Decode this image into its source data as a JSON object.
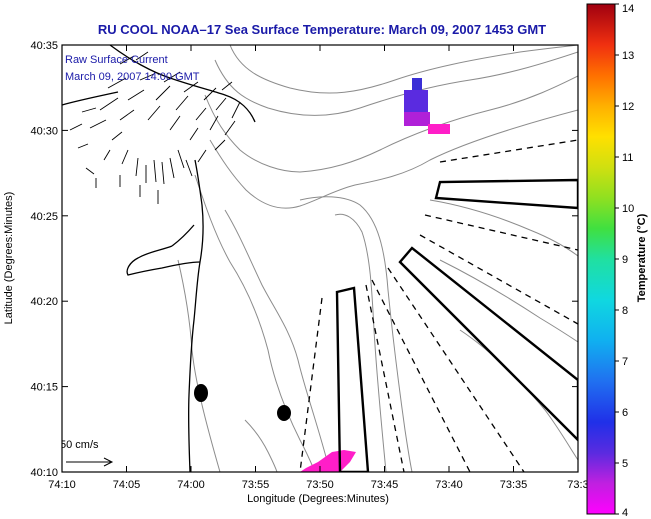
{
  "title": "RU COOL  NOAA–17  Sea Surface Temperature:  March 09, 2007 1453 GMT",
  "overlay": {
    "line1": "Raw Surface Current",
    "line2": "March 09, 2007 14:00 GMT"
  },
  "scale_label": "50 cm/s",
  "axes": {
    "xlabel": "Longitude (Degrees:Minutes)",
    "ylabel": "Latitude (Degrees:Minutes)",
    "xticks": [
      "74:10",
      "74:05",
      "74:00",
      "73:55",
      "73:50",
      "73:45",
      "73:40",
      "73:35",
      "73:3"
    ],
    "yticks": [
      "40:35",
      "40:30",
      "40:25",
      "40:20",
      "40:15",
      "40:10"
    ]
  },
  "colorbar": {
    "label": "Temperature (°C)",
    "ticks": [
      "14",
      "13",
      "12",
      "11",
      "10",
      "9",
      "8",
      "7",
      "6",
      "5",
      "4"
    ],
    "min": 4,
    "max": 14
  },
  "colors": {
    "title": "#1a1aa8",
    "contour": "#8c8c8c",
    "sst_blue": "#3a2fd6",
    "sst_purple": "#8a2be2",
    "sst_magenta": "#ff1ec8"
  }
}
